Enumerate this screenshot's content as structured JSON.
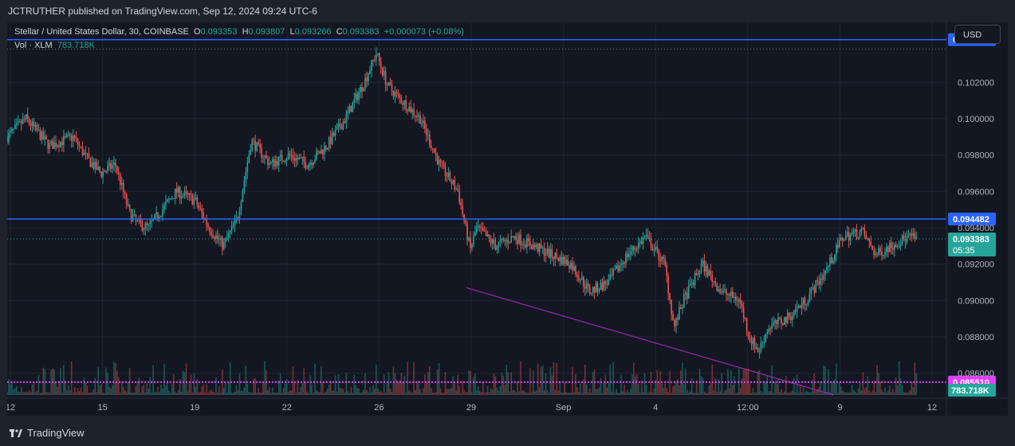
{
  "header": {
    "publisher_text": "JCTRUTHER published on TradingView.com, Sep 12, 2024 09:24 UTC-6"
  },
  "legend": {
    "symbol": "Stellar / United States Dollar, 30, COINBASE",
    "o_label": "O",
    "o_value": "0.093353",
    "h_label": "H",
    "h_value": "0.093807",
    "l_label": "L",
    "l_value": "0.093266",
    "c_label": "C",
    "c_value": "0.093383",
    "change": "+0.000073 (+0.08%)",
    "vol_label": "Vol · XLM",
    "vol_value": "783.718K"
  },
  "currency_button": "USD",
  "footer": {
    "brand": "TradingView"
  },
  "colors": {
    "up": "#26a69a",
    "down": "#ef5350",
    "hline": "#2962ff",
    "magenta": "#e040fb",
    "trend": "#9c27b0"
  },
  "chart_data": {
    "type": "candlestick",
    "price_ylim": [
      0.0848,
      0.1053
    ],
    "y_ticks": [
      "0.102000",
      "0.100000",
      "0.098000",
      "0.096000",
      "0.094000",
      "0.092000",
      "0.090000",
      "0.088000",
      "0.086000"
    ],
    "x_ticks": [
      "12",
      "15",
      "19",
      "22",
      "26",
      "29",
      "Sep",
      "4",
      "12:00",
      "9",
      "12"
    ],
    "horizontal_lines": [
      {
        "price": 0.104349,
        "label": "0.104349"
      },
      {
        "price": 0.094482,
        "label": "0.094482"
      },
      {
        "price": 0.08551,
        "label": "0.085510"
      }
    ],
    "last_price": {
      "price": 0.093383,
      "label": "0.093383",
      "countdown": "05:35"
    },
    "volume_label": "783.718K",
    "trendline": [
      {
        "t": 0.489,
        "price": 0.0907
      },
      {
        "t": 0.88,
        "price": 0.0848
      }
    ],
    "price_path": [
      [
        0.0,
        0.099
      ],
      [
        0.02,
        0.1
      ],
      [
        0.045,
        0.0985
      ],
      [
        0.07,
        0.099
      ],
      [
        0.085,
        0.0978
      ],
      [
        0.1,
        0.097
      ],
      [
        0.115,
        0.0975
      ],
      [
        0.13,
        0.0948
      ],
      [
        0.14,
        0.0942
      ],
      [
        0.15,
        0.094
      ],
      [
        0.165,
        0.095
      ],
      [
        0.18,
        0.096
      ],
      [
        0.2,
        0.0955
      ],
      [
        0.215,
        0.094
      ],
      [
        0.23,
        0.093
      ],
      [
        0.245,
        0.0945
      ],
      [
        0.26,
        0.0988
      ],
      [
        0.28,
        0.0975
      ],
      [
        0.3,
        0.098
      ],
      [
        0.32,
        0.0975
      ],
      [
        0.34,
        0.0985
      ],
      [
        0.36,
        0.1
      ],
      [
        0.38,
        0.102
      ],
      [
        0.393,
        0.1036
      ],
      [
        0.405,
        0.1018
      ],
      [
        0.42,
        0.101
      ],
      [
        0.44,
        0.1
      ],
      [
        0.46,
        0.0975
      ],
      [
        0.48,
        0.096
      ],
      [
        0.488,
        0.094
      ],
      [
        0.493,
        0.0928
      ],
      [
        0.5,
        0.094
      ],
      [
        0.52,
        0.093
      ],
      [
        0.54,
        0.0935
      ],
      [
        0.56,
        0.093
      ],
      [
        0.58,
        0.0925
      ],
      [
        0.6,
        0.092
      ],
      [
        0.62,
        0.0905
      ],
      [
        0.64,
        0.091
      ],
      [
        0.66,
        0.0925
      ],
      [
        0.68,
        0.0935
      ],
      [
        0.7,
        0.092
      ],
      [
        0.71,
        0.0885
      ],
      [
        0.72,
        0.09
      ],
      [
        0.74,
        0.092
      ],
      [
        0.76,
        0.0905
      ],
      [
        0.78,
        0.09
      ],
      [
        0.79,
        0.088
      ],
      [
        0.8,
        0.0872
      ],
      [
        0.81,
        0.0885
      ],
      [
        0.83,
        0.089
      ],
      [
        0.85,
        0.09
      ],
      [
        0.87,
        0.0915
      ],
      [
        0.89,
        0.0935
      ],
      [
        0.91,
        0.0938
      ],
      [
        0.925,
        0.0925
      ],
      [
        0.94,
        0.093
      ],
      [
        0.96,
        0.0935
      ],
      [
        0.968,
        0.0934
      ]
    ]
  }
}
